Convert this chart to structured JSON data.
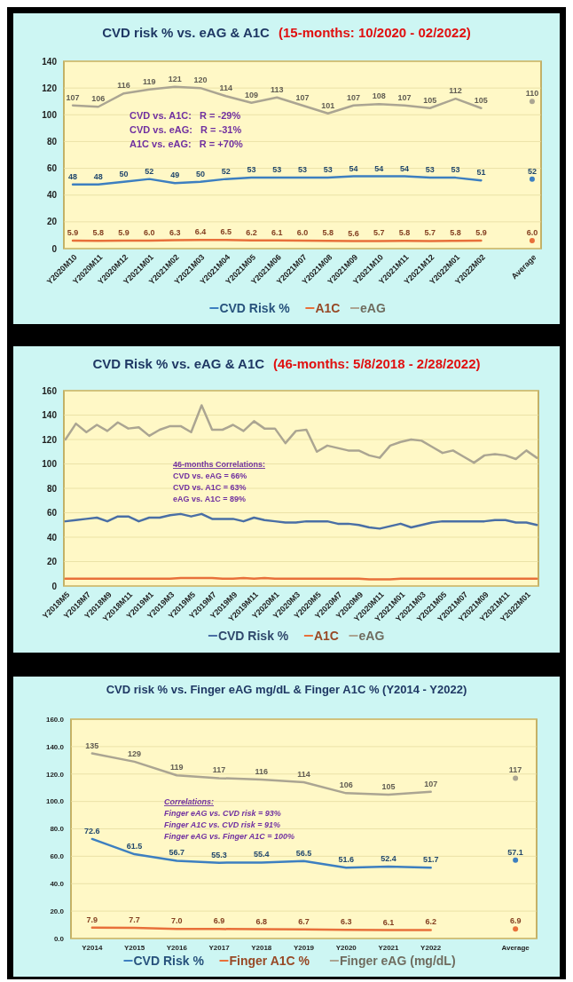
{
  "chart_data": [
    {
      "type": "line",
      "title": "CVD risk % vs. eAG & A1C",
      "subtitle": "(15-months: 10/2020 - 02/2022)",
      "categories": [
        "Y2020M10",
        "Y2020M11",
        "Y2020M12",
        "Y2021M01",
        "Y2021M02",
        "Y2021M03",
        "Y2021M04",
        "Y2021M05",
        "Y2021M06",
        "Y2021M07",
        "Y2021M08",
        "Y2021M09",
        "Y2021M10",
        "Y2021M11",
        "Y2021M12",
        "Y2022M01",
        "Y2022M02",
        null,
        "Average"
      ],
      "ylim": [
        0,
        140
      ],
      "yticks": [
        0,
        20,
        40,
        60,
        80,
        100,
        120,
        140
      ],
      "grid": "y",
      "legend": "bottom",
      "annotations": [
        "CVD vs. A1C:   R = -29%",
        "CVD vs. eAG:   R = -31%",
        "A1C vs. eAG:   R = +70%"
      ],
      "series": [
        {
          "name": "CVD Risk %",
          "color": "#3d7fc0",
          "values": [
            48,
            48,
            50,
            52,
            49,
            50,
            52,
            53,
            53,
            53,
            53,
            54,
            54,
            54,
            53,
            53,
            51,
            null,
            52
          ],
          "value_labels": [
            "48",
            "48",
            "50",
            "52",
            "49",
            "50",
            "52",
            "53",
            "53",
            "53",
            "53",
            "54",
            "54",
            "54",
            "53",
            "53",
            "51",
            null,
            "52"
          ]
        },
        {
          "name": "A1C",
          "color": "#e8703a",
          "values": [
            5.9,
            5.8,
            5.9,
            6.0,
            6.3,
            6.4,
            6.5,
            6.2,
            6.1,
            6.0,
            5.8,
            5.6,
            5.7,
            5.8,
            5.7,
            5.8,
            5.9,
            null,
            6.0
          ],
          "value_labels": [
            "5.9",
            "5.8",
            "5.9",
            "6.0",
            "6.3",
            "6.4",
            "6.5",
            "6.2",
            "6.1",
            "6.0",
            "5.8",
            "5.6",
            "5.7",
            "5.8",
            "5.7",
            "5.8",
            "5.9",
            null,
            "6.0"
          ]
        },
        {
          "name": "eAG",
          "color": "#aba592",
          "values": [
            107,
            106,
            116,
            119,
            121,
            120,
            114,
            109,
            113,
            107,
            101,
            107,
            108,
            107,
            105,
            112,
            105,
            null,
            110
          ],
          "value_labels": [
            "107",
            "106",
            "116",
            "119",
            "121",
            "120",
            "114",
            "109",
            "113",
            "107",
            "101",
            "107",
            "108",
            "107",
            "105",
            "112",
            "105",
            null,
            "110"
          ]
        }
      ]
    },
    {
      "type": "line",
      "title": "CVD Risk % vs. eAG & A1C",
      "subtitle": "(46-months: 5/8/2018 - 2/28/2022)",
      "categories": [
        "Y2018M5",
        null,
        "Y2018M7",
        null,
        "Y2018M9",
        null,
        "Y2018M11",
        null,
        "Y2019M1",
        null,
        "Y2019M3",
        null,
        "Y2019M5",
        null,
        "Y2019M7",
        null,
        "Y2019M9",
        null,
        "Y2019M11",
        null,
        "Y2020M1",
        null,
        "Y2020M3",
        null,
        "Y2020M5",
        null,
        "Y2020M7",
        null,
        "Y2020M9",
        null,
        "Y2020M11",
        null,
        "Y2021M01",
        null,
        "Y2021M03",
        null,
        "Y2021M05",
        null,
        "Y2021M07",
        null,
        "Y2021M09",
        null,
        "Y2021M11",
        null,
        "Y2022M01",
        null
      ],
      "ylim": [
        0,
        160
      ],
      "yticks": [
        0,
        20,
        40,
        60,
        80,
        100,
        120,
        140,
        160
      ],
      "grid": "y",
      "legend": "bottom",
      "annotations": [
        "46-months Correlations:",
        "CVD vs. eAG = 66%",
        "CVD vs. A1C = 63%",
        "eAG vs. A1C = 89%"
      ],
      "series": [
        {
          "name": "CVD Risk %",
          "color": "#4a6fa5",
          "values": [
            53,
            54,
            55,
            56,
            53,
            57,
            57,
            53,
            56,
            56,
            58,
            59,
            57,
            59,
            55,
            55,
            55,
            53,
            56,
            54,
            53,
            52,
            52,
            53,
            53,
            53,
            51,
            51,
            50,
            48,
            47,
            49,
            51,
            48,
            50,
            52,
            53,
            53,
            53,
            53,
            53,
            54,
            54,
            52,
            52,
            50
          ]
        },
        {
          "name": "A1C",
          "color": "#e8703a",
          "values": [
            6,
            6,
            6,
            6,
            6,
            6,
            6,
            6,
            6,
            6,
            6,
            6.5,
            6.5,
            6.5,
            6.5,
            6,
            6,
            6.5,
            6,
            6.5,
            6,
            6,
            6,
            6,
            6,
            6,
            6,
            6,
            6,
            5.5,
            5.5,
            5.5,
            6,
            6,
            6,
            6,
            6,
            6,
            6,
            6,
            6,
            6,
            6,
            6,
            6,
            6
          ]
        },
        {
          "name": "eAG",
          "color": "#aba592",
          "values": [
            120,
            133,
            126,
            132,
            127,
            134,
            129,
            130,
            123,
            128,
            131,
            131,
            126,
            148,
            128,
            128,
            132,
            127,
            135,
            129,
            129,
            117,
            127,
            128,
            110,
            115,
            113,
            111,
            111,
            107,
            105,
            115,
            118,
            120,
            119,
            114,
            109,
            111,
            106,
            101,
            107,
            108,
            107,
            104,
            111,
            105
          ]
        }
      ]
    },
    {
      "type": "line",
      "title": "CVD risk % vs. Finger eAG mg/dL & Finger A1C %  (Y2014 - Y2022)",
      "categories": [
        "Y2014",
        "Y2015",
        "Y2016",
        "Y2017",
        "Y2018",
        "Y2019",
        "Y2020",
        "Y2021",
        "Y2022",
        null,
        "Average"
      ],
      "ylim": [
        0,
        160
      ],
      "yticks": [
        {
          "value": 0,
          "label": "0.0"
        },
        {
          "value": 20,
          "label": "20.0"
        },
        {
          "value": 40,
          "label": "40.0"
        },
        {
          "value": 60,
          "label": "60.0"
        },
        {
          "value": 80,
          "label": "80.0"
        },
        {
          "value": 100,
          "label": "100.0"
        },
        {
          "value": 120,
          "label": "120.0"
        },
        {
          "value": 140,
          "label": "140.0"
        },
        {
          "value": 160,
          "label": "160.0"
        }
      ],
      "grid": "y",
      "legend": "bottom",
      "annotations": [
        "Correlations:",
        "Finger eAG vs. CVD risk = 93%",
        "Finger A1C vs. CVD risk = 91%",
        "Finger eAG vs. Finger A1C = 100%"
      ],
      "series": [
        {
          "name": "CVD Risk %",
          "color": "#3d7fc0",
          "values": [
            72.6,
            61.5,
            56.7,
            55.3,
            55.4,
            56.5,
            51.6,
            52.4,
            51.7,
            null,
            57.1
          ],
          "value_labels": [
            "72.6",
            "61.5",
            "56.7",
            "55.3",
            "55.4",
            "56.5",
            "51.6",
            "52.4",
            "51.7",
            null,
            "57.1"
          ]
        },
        {
          "name": "Finger A1C %",
          "color": "#e8703a",
          "values": [
            7.9,
            7.7,
            7.0,
            6.9,
            6.8,
            6.7,
            6.3,
            6.1,
            6.2,
            null,
            6.9
          ],
          "value_labels": [
            "7.9",
            "7.7",
            "7.0",
            "6.9",
            "6.8",
            "6.7",
            "6.3",
            "6.1",
            "6.2",
            null,
            "6.9"
          ]
        },
        {
          "name": "Finger eAG (mg/dL)",
          "color": "#aba592",
          "values": [
            135,
            129,
            119,
            117,
            116,
            114,
            106,
            105,
            107,
            null,
            117
          ],
          "value_labels": [
            "135",
            "129",
            "119",
            "117",
            "116",
            "114",
            "106",
            "105",
            "107",
            null,
            "117"
          ]
        }
      ]
    }
  ]
}
